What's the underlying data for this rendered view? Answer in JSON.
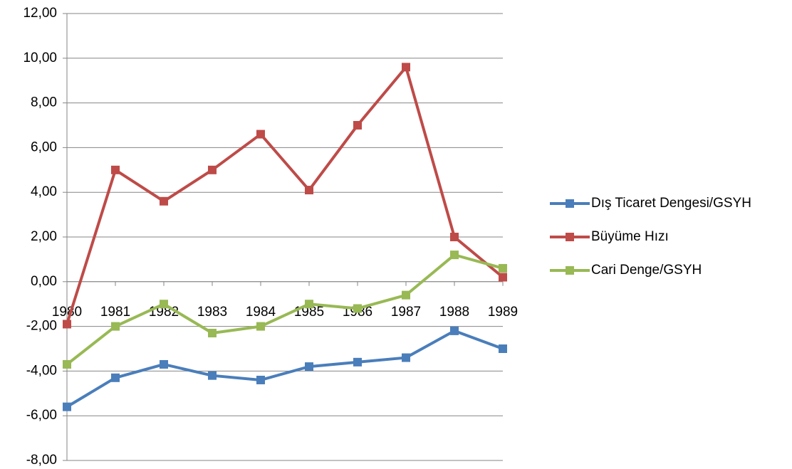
{
  "chart_data": {
    "type": "line",
    "categories": [
      "1980",
      "1981",
      "1982",
      "1983",
      "1984",
      "1985",
      "1986",
      "1987",
      "1988",
      "1989"
    ],
    "series": [
      {
        "name": "Dış Ticaret Dengesi/GSYH",
        "color": "#4a7ebb",
        "values": [
          -5.6,
          -4.3,
          -3.7,
          -4.2,
          -4.4,
          -3.8,
          -3.6,
          -3.4,
          -2.2,
          -3.0
        ]
      },
      {
        "name": "Büyüme Hızı",
        "color": "#be4b48",
        "values": [
          -1.9,
          5.0,
          3.6,
          5.0,
          6.6,
          4.1,
          7.0,
          9.6,
          2.0,
          0.2
        ]
      },
      {
        "name": "Cari Denge/GSYH",
        "color": "#98b954",
        "values": [
          -3.7,
          -2.0,
          -1.0,
          -2.3,
          -2.0,
          -1.0,
          -1.2,
          -0.6,
          1.2,
          0.6
        ]
      }
    ],
    "ylim": [
      -8,
      12
    ],
    "yticks": [
      {
        "value": -8,
        "label": "-8,00"
      },
      {
        "value": -6,
        "label": "-6,00"
      },
      {
        "value": -4,
        "label": "-4,00"
      },
      {
        "value": -2,
        "label": "-2,00"
      },
      {
        "value": 0,
        "label": "0,00"
      },
      {
        "value": 2,
        "label": "2,00"
      },
      {
        "value": 4,
        "label": "4,00"
      },
      {
        "value": 6,
        "label": "6,00"
      },
      {
        "value": 8,
        "label": "8,00"
      },
      {
        "value": 10,
        "label": "10,00"
      },
      {
        "value": 12,
        "label": "12,00"
      }
    ],
    "grid": true,
    "legend": "right"
  }
}
